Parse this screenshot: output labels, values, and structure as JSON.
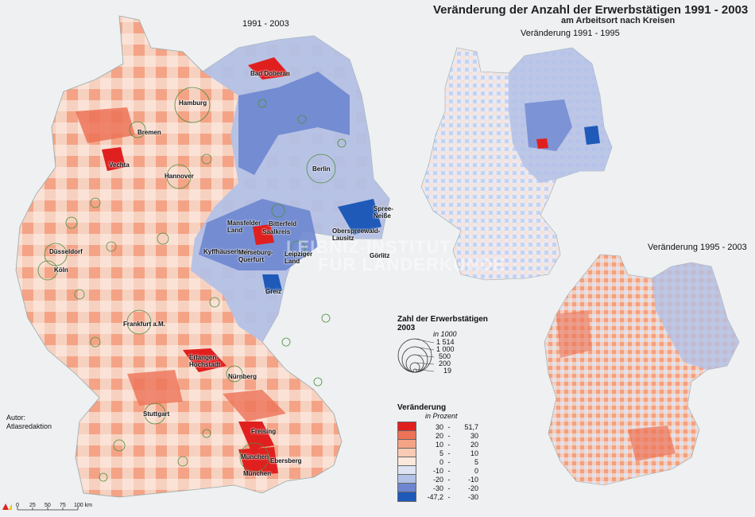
{
  "title": "Veränderung der Anzahl der Erwerbstätigen 1991 - 2003",
  "subtitle": "am Arbeitsort nach Kreisen",
  "maps": {
    "main_label": "1991 - 2003",
    "small1_label": "Veränderung 1991 - 1995",
    "small2_label": "Veränderung 1995 - 2003"
  },
  "cities": [
    "Bad Doberan",
    "Hamburg",
    "Bremen",
    "Vechta",
    "Hannover",
    "Berlin",
    "Spree-Neiße",
    "Bitterfeld",
    "Mansfelder Land",
    "Saalkreis",
    "Oberspreewald-Lausitz",
    "Kyffhäuserkreis",
    "Merseburg-Querfurt",
    "Leipziger Land",
    "Düsseldorf",
    "Köln",
    "Görlitz",
    "Greiz",
    "Frankfurt a.M.",
    "Erlangen-Höchstadt",
    "Nürnberg",
    "Stuttgart",
    "Freising",
    "München",
    "Ebersberg",
    "München"
  ],
  "author": {
    "label": "Autor:",
    "name": "Atlasredaktion"
  },
  "watermark": {
    "line1": "LEIBNIZ-INSTITUT",
    "line2": "FÜR LÄNDERKUNDE"
  },
  "size_legend": {
    "heading": "Zahl der Erwerbstätigen 2003",
    "unit": "in 1000",
    "values": [
      "1 514",
      "1 000",
      "500",
      "200",
      "19"
    ]
  },
  "color_legend": {
    "heading": "Veränderung",
    "unit": "in Prozent",
    "classes": [
      {
        "from": "30",
        "to": "51,7",
        "color": "#e0201f"
      },
      {
        "from": "20",
        "to": "30",
        "color": "#ec7357"
      },
      {
        "from": "10",
        "to": "20",
        "color": "#f4a386"
      },
      {
        "from": "5",
        "to": "10",
        "color": "#f9cbb4"
      },
      {
        "from": "0",
        "to": "5",
        "color": "#fde8dc"
      },
      {
        "from": "-10",
        "to": "0",
        "color": "#dde3f3"
      },
      {
        "from": "-20",
        "to": "-10",
        "color": "#b3c1e6"
      },
      {
        "from": "-30",
        "to": "-20",
        "color": "#6d86cf"
      },
      {
        "from": "-47,2",
        "to": "-30",
        "color": "#1f5ab8"
      }
    ]
  },
  "scale_bar": {
    "ticks": [
      "0",
      "25",
      "50",
      "75",
      "100 km"
    ]
  }
}
